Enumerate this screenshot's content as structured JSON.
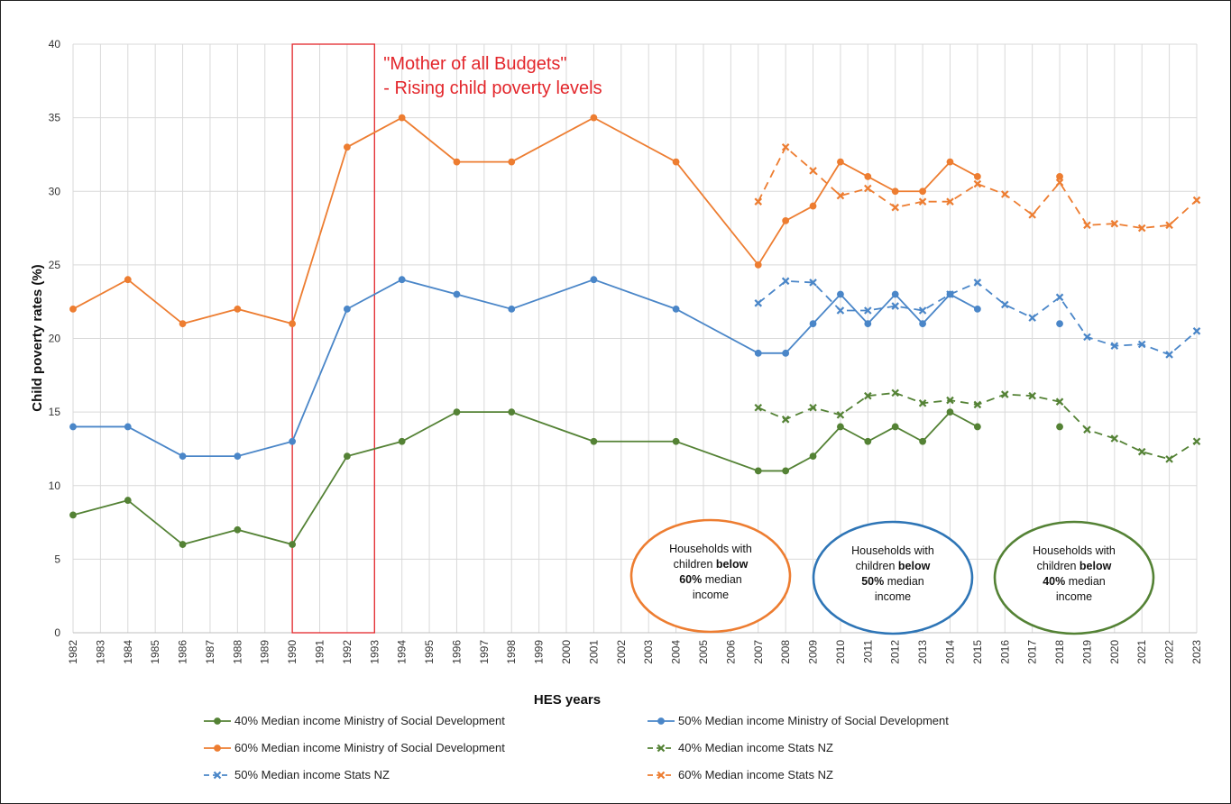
{
  "chart_data": {
    "type": "line",
    "xlabel": "HES years",
    "ylabel": "Child poverty rates (%)",
    "ylim": [
      0,
      40
    ],
    "yticks": [
      0,
      5,
      10,
      15,
      20,
      25,
      30,
      35,
      40
    ],
    "categories": [
      "1982",
      "1983",
      "1984",
      "1985",
      "1986",
      "1987",
      "1988",
      "1989",
      "1990",
      "1991",
      "1992",
      "1993",
      "1994",
      "1995",
      "1996",
      "1997",
      "1998",
      "1999",
      "2000",
      "2001",
      "2002",
      "2003",
      "2004",
      "2005",
      "2006",
      "2007",
      "2008",
      "2009",
      "2010",
      "2011",
      "2012",
      "2013",
      "2014",
      "2015",
      "2016",
      "2017",
      "2018",
      "2019",
      "2020",
      "2021",
      "2022",
      "2023"
    ],
    "grid": true,
    "legend_position": "bottom",
    "colors": {
      "green": "#548235",
      "blue": "#4a86c8",
      "orange": "#ed7d31",
      "red": "#e3262b"
    },
    "series": [
      {
        "name": "40% Median income Ministry of Social Development",
        "color": "#548235",
        "style": "solid",
        "marker": "circle",
        "points": [
          [
            1982,
            8
          ],
          [
            1984,
            9
          ],
          [
            1986,
            6
          ],
          [
            1988,
            7
          ],
          [
            1990,
            6
          ],
          [
            1992,
            12
          ],
          [
            1994,
            13
          ],
          [
            1996,
            15
          ],
          [
            1998,
            15
          ],
          [
            2001,
            13
          ],
          [
            2004,
            13
          ],
          [
            2007,
            11
          ],
          [
            2008,
            11
          ],
          [
            2009,
            12
          ],
          [
            2010,
            14
          ],
          [
            2011,
            13
          ],
          [
            2012,
            14
          ],
          [
            2013,
            13
          ],
          [
            2014,
            15
          ],
          [
            2015,
            14
          ],
          null,
          [
            2018,
            14
          ]
        ]
      },
      {
        "name": "50% Median income Ministry of Social Development",
        "color": "#4a86c8",
        "style": "solid",
        "marker": "circle",
        "points": [
          [
            1982,
            14
          ],
          [
            1984,
            14
          ],
          [
            1986,
            12
          ],
          [
            1988,
            12
          ],
          [
            1990,
            13
          ],
          [
            1992,
            22
          ],
          [
            1994,
            24
          ],
          [
            1996,
            23
          ],
          [
            1998,
            22
          ],
          [
            2001,
            24
          ],
          [
            2004,
            22
          ],
          [
            2007,
            19
          ],
          [
            2008,
            19
          ],
          [
            2009,
            21
          ],
          [
            2010,
            23
          ],
          [
            2011,
            21
          ],
          [
            2012,
            23
          ],
          [
            2013,
            21
          ],
          [
            2014,
            23
          ],
          [
            2015,
            22
          ],
          null,
          [
            2018,
            21
          ]
        ]
      },
      {
        "name": "60% Median income Ministry of Social Development",
        "color": "#ed7d31",
        "style": "solid",
        "marker": "circle",
        "points": [
          [
            1982,
            22
          ],
          [
            1984,
            24
          ],
          [
            1986,
            21
          ],
          [
            1988,
            22
          ],
          [
            1990,
            21
          ],
          [
            1992,
            33
          ],
          [
            1994,
            35
          ],
          [
            1996,
            32
          ],
          [
            1998,
            32
          ],
          [
            2001,
            35
          ],
          [
            2004,
            32
          ],
          [
            2007,
            25
          ],
          [
            2008,
            28
          ],
          [
            2009,
            29
          ],
          [
            2010,
            32
          ],
          [
            2011,
            31
          ],
          [
            2012,
            30
          ],
          [
            2013,
            30
          ],
          [
            2014,
            32
          ],
          [
            2015,
            31
          ],
          null,
          [
            2018,
            31
          ]
        ]
      },
      {
        "name": "40% Median income Stats NZ",
        "color": "#548235",
        "style": "dashed",
        "marker": "x",
        "points": [
          [
            2007,
            15.3
          ],
          [
            2008,
            14.5
          ],
          [
            2009,
            15.3
          ],
          [
            2010,
            14.8
          ],
          [
            2011,
            16.1
          ],
          [
            2012,
            16.3
          ],
          [
            2013,
            15.6
          ],
          [
            2014,
            15.8
          ],
          [
            2015,
            15.5
          ],
          [
            2016,
            16.2
          ],
          [
            2017,
            16.1
          ],
          [
            2018,
            15.7
          ],
          [
            2019,
            13.8
          ],
          [
            2020,
            13.2
          ],
          [
            2021,
            12.3
          ],
          [
            2022,
            11.8
          ],
          [
            2023,
            13.0
          ]
        ]
      },
      {
        "name": "50% Median income Stats NZ",
        "color": "#4a86c8",
        "style": "dashed",
        "marker": "x",
        "points": [
          [
            2007,
            22.4
          ],
          [
            2008,
            23.9
          ],
          [
            2009,
            23.8
          ],
          [
            2010,
            21.9
          ],
          [
            2011,
            21.9
          ],
          [
            2012,
            22.2
          ],
          [
            2013,
            21.9
          ],
          [
            2014,
            23.0
          ],
          [
            2015,
            23.8
          ],
          [
            2016,
            22.3
          ],
          [
            2017,
            21.4
          ],
          [
            2018,
            22.8
          ],
          [
            2019,
            20.1
          ],
          [
            2020,
            19.5
          ],
          [
            2021,
            19.6
          ],
          [
            2022,
            18.9
          ],
          [
            2023,
            20.5
          ]
        ]
      },
      {
        "name": "60% Median income Stats NZ",
        "color": "#ed7d31",
        "style": "dashed",
        "marker": "x",
        "points": [
          [
            2007,
            29.3
          ],
          [
            2008,
            33.0
          ],
          [
            2009,
            31.4
          ],
          [
            2010,
            29.7
          ],
          [
            2011,
            30.2
          ],
          [
            2012,
            28.9
          ],
          [
            2013,
            29.3
          ],
          [
            2014,
            29.3
          ],
          [
            2015,
            30.5
          ],
          [
            2016,
            29.8
          ],
          [
            2017,
            28.4
          ],
          [
            2018,
            30.6
          ],
          [
            2019,
            27.7
          ],
          [
            2020,
            27.8
          ],
          [
            2021,
            27.5
          ],
          [
            2022,
            27.7
          ],
          [
            2023,
            29.4
          ]
        ]
      }
    ],
    "annotations": {
      "highlight_range": [
        "1990",
        "1993"
      ],
      "budget_note_line1": "\"Mother of all Budgets\"",
      "budget_note_line2": "- Rising child poverty levels"
    },
    "bubbles": [
      {
        "color": "#ed7d31",
        "lines": [
          [
            "Households with",
            ""
          ],
          [
            "children ",
            "below"
          ],
          [
            "60%",
            " median"
          ],
          [
            "income",
            ""
          ]
        ]
      },
      {
        "color": "#2e75b6",
        "lines": [
          [
            "Households with",
            ""
          ],
          [
            "children ",
            "below"
          ],
          [
            "50%",
            " median"
          ],
          [
            "income",
            ""
          ]
        ]
      },
      {
        "color": "#548235",
        "lines": [
          [
            "Households with",
            ""
          ],
          [
            "children ",
            "below"
          ],
          [
            "40%",
            " median"
          ],
          [
            "income",
            ""
          ]
        ]
      }
    ]
  }
}
